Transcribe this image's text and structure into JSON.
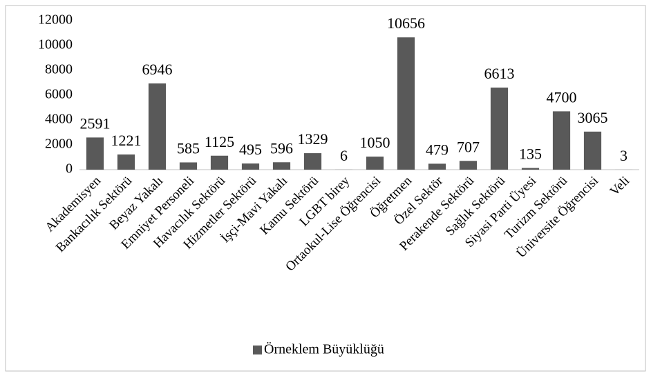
{
  "chart_data": {
    "type": "bar",
    "categories": [
      "Akademisyen",
      "Bankacılık Sektörü",
      "Beyaz Yakalı",
      "Emniyet Personeli",
      "Havacılık Sektörü",
      "Hizmetler Sektörü",
      "İşçi-Mavi Yakalı",
      "Kamu Sektörü",
      "LGBT birey",
      "Ortaokul-Lise Öğrencisi",
      "Öğretmen",
      "Özel Sektör",
      "Perakende Sektörü",
      "Sağlık Sektörü",
      "Siyasi Parti Üyesi",
      "Turizm Sektörü",
      "Üniversite Öğrencisi",
      "Veli"
    ],
    "series": [
      {
        "name": "Örneklem Büyüklüğü",
        "color": "#595959",
        "values": [
          2591,
          1221,
          6946,
          585,
          1125,
          495,
          596,
          1329,
          6,
          1050,
          10656,
          479,
          707,
          6613,
          135,
          4700,
          3065,
          3
        ]
      }
    ],
    "ylim": [
      0,
      12000
    ],
    "yticks": [
      0,
      2000,
      4000,
      6000,
      8000,
      10000,
      12000
    ],
    "grid": false,
    "legend": "bottom"
  }
}
